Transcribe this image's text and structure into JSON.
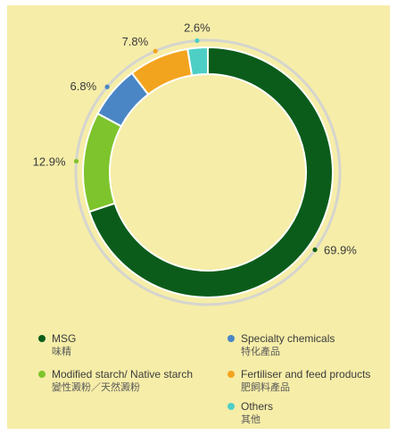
{
  "chart_data": {
    "type": "pie",
    "variant": "donut",
    "slices": [
      {
        "label": "MSG",
        "label_zh": "味精",
        "value": 69.9,
        "display": "69.9%",
        "color": "#0b5c1a"
      },
      {
        "label": "Modified starch/ Native starch",
        "label_zh": "變性澱粉／天然澱粉",
        "value": 12.9,
        "display": "12.9%",
        "color": "#7ec42c"
      },
      {
        "label": "Specialty chemicals",
        "label_zh": "特化產品",
        "value": 6.8,
        "display": "6.8%",
        "color": "#4a86c5"
      },
      {
        "label": "Fertiliser and feed products",
        "label_zh": "肥飼料產品",
        "value": 7.8,
        "display": "7.8%",
        "color": "#f3a41e"
      },
      {
        "label": "Others",
        "label_zh": "其他",
        "value": 2.6,
        "display": "2.6%",
        "color": "#4ecfc6"
      }
    ],
    "start": "12 o'clock",
    "direction": "clockwise",
    "order": [
      "MSG",
      "Modified starch/ Native starch",
      "Specialty chemicals",
      "Fertiliser and feed products",
      "Others"
    ]
  },
  "colors": {
    "background": "#f6eda8",
    "ring_track": "#d5d5cf"
  }
}
